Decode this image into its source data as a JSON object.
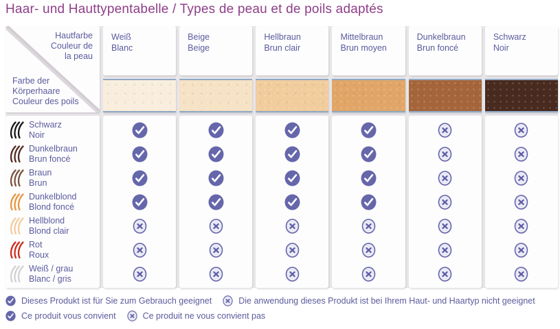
{
  "title": "Haar- und Hauttypentabelle / Types de peau et de poils adaptés",
  "colors": {
    "title": "#8e3e88",
    "text": "#5b5b9d",
    "table_gutter": "#e9e7e9",
    "cell_bg": "#fdfdfe",
    "swatch_border": "#8fa9c5",
    "check_fill": "#6666ab",
    "check_glyph": "#ffffff",
    "cross_fill": "#eaeaf6",
    "cross_border": "#6767ac",
    "cross_glyph": "#5d5da6"
  },
  "icons": {
    "check": "check-icon",
    "cross": "cross-icon",
    "hair": "hair-strands-icon"
  },
  "table": {
    "corner": {
      "top": [
        "Hautfarbe",
        "Couleur de",
        "la peau"
      ],
      "bottom": [
        "Farbe der",
        "Körperhaare",
        "Couleur des poils"
      ]
    },
    "skin_columns": [
      {
        "de": "Weiß",
        "fr": "Blanc",
        "swatch": "#f9eedd"
      },
      {
        "de": "Beige",
        "fr": "Beige",
        "swatch": "#f6e2c4"
      },
      {
        "de": "Hellbraun",
        "fr": "Brun clair",
        "swatch": "#f1cd9e"
      },
      {
        "de": "Mittelbraun",
        "fr": "Brun moyen",
        "swatch": "#e1a667"
      },
      {
        "de": "Dunkelbraun",
        "fr": "Brun foncé",
        "swatch": "#a5653b"
      },
      {
        "de": "Schwarz",
        "fr": "Noir",
        "swatch": "#482a1e"
      }
    ],
    "hair_rows": [
      {
        "de": "Schwarz",
        "fr": "Noir",
        "hair_color": "#161616",
        "marks": [
          "yes",
          "yes",
          "yes",
          "yes",
          "no",
          "no"
        ]
      },
      {
        "de": "Dunkelbraun",
        "fr": "Brun foncé",
        "hair_color": "#542a22",
        "marks": [
          "yes",
          "yes",
          "yes",
          "yes",
          "no",
          "no"
        ]
      },
      {
        "de": "Braun",
        "fr": "Brun",
        "hair_color": "#7c5340",
        "marks": [
          "yes",
          "yes",
          "yes",
          "yes",
          "no",
          "no"
        ]
      },
      {
        "de": "Dunkelblond",
        "fr": "Blond foncé",
        "hair_color": "#e8953f",
        "marks": [
          "yes",
          "yes",
          "yes",
          "yes",
          "no",
          "no"
        ]
      },
      {
        "de": "Hellblond",
        "fr": "Blond clair",
        "hair_color": "#f3cd9e",
        "marks": [
          "no",
          "no",
          "no",
          "no",
          "no",
          "no"
        ]
      },
      {
        "de": "Rot",
        "fr": "Roux",
        "hair_color": "#cd2b1b",
        "marks": [
          "no",
          "no",
          "no",
          "no",
          "no",
          "no"
        ]
      },
      {
        "de": "Weiß / grau",
        "fr": "Blanc / gris",
        "hair_color": "#d2d2d2",
        "marks": [
          "no",
          "no",
          "no",
          "no",
          "no",
          "no"
        ]
      }
    ]
  },
  "legend": {
    "suitable_de": "Dieses Produkt ist für Sie zum Gebrauch geeignet",
    "not_suitable_de": "Die anwendung dieses Produkt ist bei Ihrem Haut- und Haartyp nicht geeignet",
    "suitable_fr": "Ce produit vous convient",
    "not_suitable_fr": "Ce produit ne vous convient pas"
  }
}
